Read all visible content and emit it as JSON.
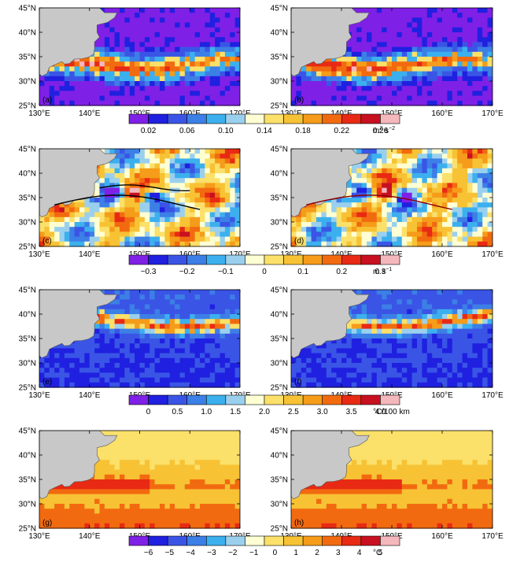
{
  "figure": {
    "panels": [
      {
        "label": "(a)",
        "field": "eke"
      },
      {
        "label": "(b)",
        "field": "eke"
      },
      {
        "label": "(c)",
        "field": "anom"
      },
      {
        "label": "(d)",
        "field": "anom"
      },
      {
        "label": "(e)",
        "field": "grad"
      },
      {
        "label": "(f)",
        "field": "grad"
      },
      {
        "label": "(g)",
        "field": "sst"
      },
      {
        "label": "(h)",
        "field": "sst"
      }
    ],
    "lon_ticks": [
      "130°E",
      "140°E",
      "150°E",
      "160°E",
      "170°E"
    ],
    "lat_ticks": [
      "45°N",
      "40°N",
      "35°N",
      "30°N",
      "25°N"
    ],
    "colorbars": [
      {
        "labels": [
          "0.02",
          "0.06",
          "0.10",
          "0.14",
          "0.18",
          "0.22",
          "0.26"
        ],
        "unit_main": "m",
        "unit_sup1": "2",
        "unit_mid": " s",
        "unit_sup2": "−2",
        "colors": [
          "#7f20e6",
          "#2020e0",
          "#3a55e6",
          "#3c7fe6",
          "#3cb0ee",
          "#9ad0ee",
          "#ffffd4",
          "#fbe06a",
          "#f7c234",
          "#f59c1a",
          "#f26a10",
          "#e82a14",
          "#c81020",
          "#f4b7bc"
        ]
      },
      {
        "labels": [
          "−0.3",
          "−0.2",
          "−0.1",
          "0",
          "0.1",
          "0.2",
          "0.3"
        ],
        "unit_main": "m",
        "unit_sup1": "",
        "unit_mid": " s",
        "unit_sup2": "−1",
        "colors": [
          "#7f20e6",
          "#2020e0",
          "#3a55e6",
          "#3c7fe6",
          "#3cb0ee",
          "#9ad0ee",
          "#ffffd4",
          "#fbe06a",
          "#f7c234",
          "#f59c1a",
          "#f26a10",
          "#e82a14",
          "#c81020",
          "#f4b7bc"
        ]
      },
      {
        "labels": [
          "0",
          "0.5",
          "1.0",
          "1.5",
          "2.0",
          "2.5",
          "3.0",
          "3.5",
          "4.0"
        ],
        "unit_main": "°C/100 km",
        "unit_sup1": "",
        "unit_mid": "",
        "unit_sup2": "",
        "colors": [
          "#7f20e6",
          "#2020e0",
          "#3a55e6",
          "#3c7fe6",
          "#3cb0ee",
          "#9ad0ee",
          "#ffffd4",
          "#fbe06a",
          "#f7c234",
          "#f59c1a",
          "#f26a10",
          "#e82a14",
          "#c81020",
          "#f4b7bc"
        ]
      },
      {
        "labels": [
          "−6",
          "−5",
          "−4",
          "−3",
          "−2",
          "−1",
          "0",
          "1",
          "2",
          "3",
          "4",
          "5"
        ],
        "unit_main": "°C",
        "unit_sup1": "",
        "unit_mid": "",
        "unit_sup2": "",
        "colors": [
          "#7f20e6",
          "#2020e0",
          "#3a55e6",
          "#3c7fe6",
          "#3cb0ee",
          "#9ad0ee",
          "#ffffd4",
          "#fbe06a",
          "#f7c234",
          "#f59c1a",
          "#f26a10",
          "#e82a14",
          "#c81020",
          "#f4b7bc"
        ]
      }
    ]
  },
  "chart_data": {
    "type": "heatmap",
    "title": "",
    "xlabel": "",
    "ylabel": "",
    "x_range": [
      "130°E",
      "170°E"
    ],
    "y_range": [
      "25°N",
      "45°N"
    ],
    "panels": [
      "(a)",
      "(b)",
      "(c)",
      "(d)",
      "(e)",
      "(f)",
      "(g)",
      "(h)"
    ],
    "colorbar_levels": [
      [
        0.02,
        0.06,
        0.1,
        0.14,
        0.18,
        0.22,
        0.26
      ],
      [
        -0.3,
        -0.2,
        -0.1,
        0,
        0.1,
        0.2,
        0.3
      ],
      [
        0,
        0.5,
        1.0,
        1.5,
        2.0,
        2.5,
        3.0,
        3.5,
        4.0
      ],
      [
        -6,
        -5,
        -4,
        -3,
        -2,
        -1,
        0,
        1,
        2,
        3,
        4,
        5
      ]
    ]
  }
}
